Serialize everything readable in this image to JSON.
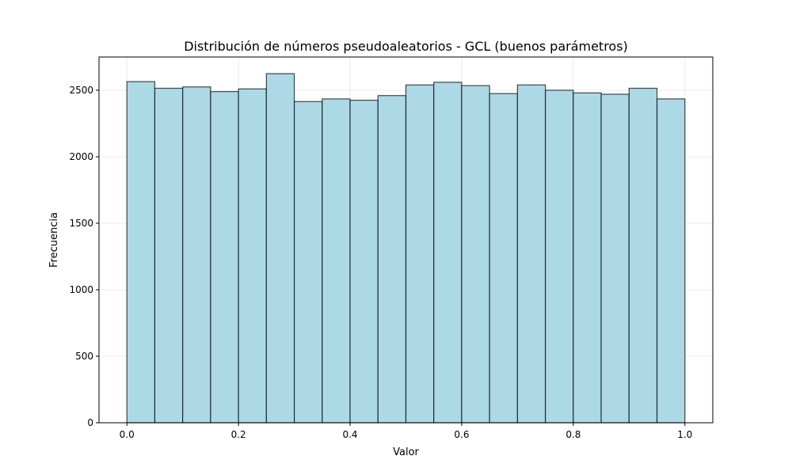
{
  "chart_data": {
    "type": "bar",
    "title": "Distribución de números pseudoaleatorios - GCL (buenos parámetros)",
    "xlabel": "Valor",
    "ylabel": "Frecuencia",
    "xlim": [
      -0.05,
      1.05
    ],
    "ylim": [
      0,
      2750
    ],
    "xticks": [
      0.0,
      0.2,
      0.4,
      0.6,
      0.8,
      1.0
    ],
    "xtick_labels": [
      "0.0",
      "0.2",
      "0.4",
      "0.6",
      "0.8",
      "1.0"
    ],
    "yticks": [
      0,
      500,
      1000,
      1500,
      2000,
      2500
    ],
    "ytick_labels": [
      "0",
      "500",
      "1000",
      "1500",
      "2000",
      "2500"
    ],
    "grid": true,
    "bar_color": "#add8e6",
    "edge_color": "#000000",
    "bins": [
      [
        0.0,
        0.05
      ],
      [
        0.05,
        0.1
      ],
      [
        0.1,
        0.15
      ],
      [
        0.15,
        0.2
      ],
      [
        0.2,
        0.25
      ],
      [
        0.25,
        0.3
      ],
      [
        0.3,
        0.35
      ],
      [
        0.35,
        0.4
      ],
      [
        0.4,
        0.45
      ],
      [
        0.45,
        0.5
      ],
      [
        0.5,
        0.55
      ],
      [
        0.55,
        0.6
      ],
      [
        0.6,
        0.65
      ],
      [
        0.65,
        0.7
      ],
      [
        0.7,
        0.75
      ],
      [
        0.75,
        0.8
      ],
      [
        0.8,
        0.85
      ],
      [
        0.85,
        0.9
      ],
      [
        0.9,
        0.95
      ],
      [
        0.95,
        1.0
      ]
    ],
    "values": [
      2565,
      2515,
      2525,
      2490,
      2510,
      2625,
      2415,
      2435,
      2425,
      2460,
      2540,
      2560,
      2535,
      2475,
      2540,
      2500,
      2480,
      2470,
      2515,
      2435
    ]
  }
}
